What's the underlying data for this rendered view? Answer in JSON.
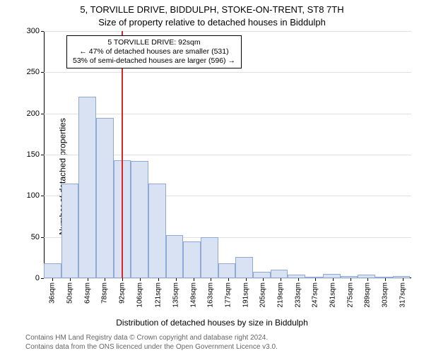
{
  "title_line1": "5, TORVILLE DRIVE, BIDDULPH, STOKE-ON-TRENT, ST8 7TH",
  "title_line2": "Size of property relative to detached houses in Biddulph",
  "ylabel": "Number of detached properties",
  "xlabel": "Distribution of detached houses by size in Biddulph",
  "footnote_line1": "Contains HM Land Registry data © Crown copyright and database right 2024.",
  "footnote_line2": "Contains data from the ONS licenced under the Open Government Licence v3.0.",
  "chart": {
    "type": "histogram",
    "background_color": "#ffffff",
    "grid_color": "#e0e0e0",
    "bar_fill": "#d8e2f3",
    "bar_border": "#8fa8d4",
    "axis_color": "#000000",
    "ref_line_color": "#d62728",
    "ref_line_x": 92,
    "label_fontsize": 12,
    "tick_fontsize": 11,
    "xtick_fontsize": 10,
    "ylim": [
      0,
      300
    ],
    "yticks": [
      0,
      50,
      100,
      150,
      200,
      250,
      300
    ],
    "x_min": 29,
    "x_max": 324,
    "bin_width": 14,
    "x_tick_labels": [
      "36sqm",
      "50sqm",
      "64sqm",
      "78sqm",
      "92sqm",
      "106sqm",
      "121sqm",
      "135sqm",
      "149sqm",
      "163sqm",
      "177sqm",
      "191sqm",
      "205sqm",
      "219sqm",
      "233sqm",
      "247sqm",
      "261sqm",
      "275sqm",
      "289sqm",
      "303sqm",
      "317sqm"
    ],
    "x_tick_positions": [
      36,
      50,
      64,
      78,
      92,
      106,
      121,
      135,
      149,
      163,
      177,
      191,
      205,
      219,
      233,
      247,
      261,
      275,
      289,
      303,
      317
    ],
    "bars": [
      {
        "x_left": 29,
        "value": 18
      },
      {
        "x_left": 43,
        "value": 115
      },
      {
        "x_left": 57,
        "value": 220
      },
      {
        "x_left": 71,
        "value": 195
      },
      {
        "x_left": 85,
        "value": 143
      },
      {
        "x_left": 99,
        "value": 142
      },
      {
        "x_left": 113,
        "value": 115
      },
      {
        "x_left": 127,
        "value": 52
      },
      {
        "x_left": 141,
        "value": 45
      },
      {
        "x_left": 155,
        "value": 50
      },
      {
        "x_left": 169,
        "value": 18
      },
      {
        "x_left": 183,
        "value": 26
      },
      {
        "x_left": 197,
        "value": 8
      },
      {
        "x_left": 211,
        "value": 10
      },
      {
        "x_left": 225,
        "value": 4
      },
      {
        "x_left": 239,
        "value": 2
      },
      {
        "x_left": 253,
        "value": 5
      },
      {
        "x_left": 267,
        "value": 3
      },
      {
        "x_left": 281,
        "value": 4
      },
      {
        "x_left": 295,
        "value": 2
      },
      {
        "x_left": 309,
        "value": 3
      }
    ]
  },
  "annotation": {
    "line1": "5 TORVILLE DRIVE: 92sqm",
    "line2": "← 47% of detached houses are smaller (531)",
    "line3": "53% of semi-detached houses are larger (596) →",
    "border_color": "#000000",
    "background_color": "#ffffff",
    "fontsize": 10.5
  }
}
